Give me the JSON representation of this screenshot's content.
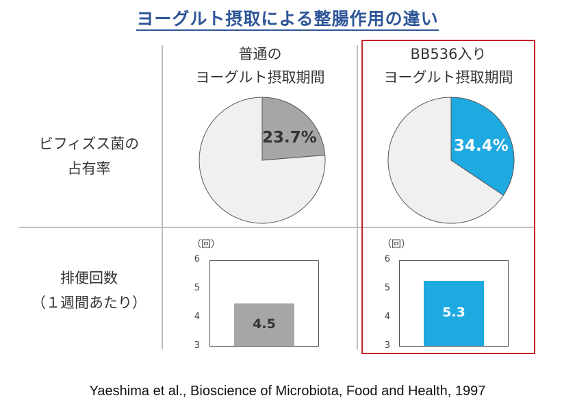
{
  "title": "ヨーグルト摂取による整腸作用の違い",
  "columns": {
    "normal": {
      "line1": "普通の",
      "line2": "ヨーグルト摂取期間"
    },
    "bb536": {
      "line1": "BB536入り",
      "line2": "ヨーグルト摂取期間"
    }
  },
  "rows": {
    "bifido": {
      "line1": "ビフィズス菌の",
      "line2": "占有率"
    },
    "defecation": {
      "line1": "排便回数",
      "line2": "（１週間あたり）"
    }
  },
  "colors": {
    "normal": "#a6a6a6",
    "bb536": "#1fa9e1",
    "pie_rest": "#f0f0f0",
    "highlight_border": "#c8202a",
    "title": "#2e5597"
  },
  "chart_data": [
    {
      "type": "pie",
      "series_group": "occupancy_normal",
      "slices": [
        {
          "label": "23.7%",
          "value": 23.7
        },
        {
          "label": "",
          "value": 76.3
        }
      ]
    },
    {
      "type": "pie",
      "series_group": "occupancy_bb536",
      "slices": [
        {
          "label": "34.4%",
          "value": 34.4
        },
        {
          "label": "",
          "value": 65.6
        }
      ]
    },
    {
      "type": "bar",
      "unit": "（回）",
      "ylim": [
        3,
        6
      ],
      "yticks": [
        "3",
        "4",
        "5",
        "6"
      ],
      "values": [
        4.5
      ],
      "data_label": "4.5"
    },
    {
      "type": "bar",
      "unit": "（回）",
      "ylim": [
        3,
        6
      ],
      "yticks": [
        "3",
        "4",
        "5",
        "6"
      ],
      "values": [
        5.3
      ],
      "data_label": "5.3"
    }
  ],
  "citation": "Yaeshima et al., Bioscience of Microbiota, Food and Health, 1997"
}
